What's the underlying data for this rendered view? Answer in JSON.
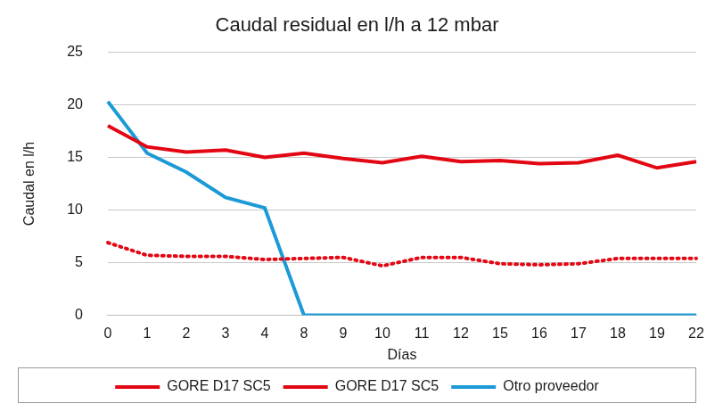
{
  "chart_data": {
    "type": "line",
    "title": "Caudal residual en l/h a 12 mbar",
    "x_label": "Días",
    "y_label": "Caudal en l/h",
    "categories": [
      "0",
      "1",
      "2",
      "3",
      "4",
      "8",
      "9",
      "10",
      "11",
      "12",
      "15",
      "16",
      "17",
      "18",
      "19",
      "22"
    ],
    "series": [
      {
        "name": "GORE D17 SC5",
        "color": "#e30613",
        "line_style": "dotted",
        "values": [
          6.9,
          5.7,
          5.6,
          5.6,
          5.3,
          5.4,
          5.5,
          4.7,
          5.5,
          5.5,
          4.9,
          4.8,
          4.9,
          5.4,
          5.4,
          5.4
        ]
      },
      {
        "name": "GORE D17 SC5",
        "color": "#e30613",
        "line_style": "solid",
        "values": [
          18,
          16,
          15.5,
          15.7,
          15,
          15.4,
          14.9,
          14.5,
          15.1,
          14.6,
          14.7,
          14.4,
          14.5,
          15.2,
          14,
          14.6
        ]
      },
      {
        "name": "Otro proveedor",
        "color": "#1b9ad6",
        "line_style": "solid",
        "values": [
          20.3,
          15.4,
          13.6,
          11.2,
          10.2,
          0,
          0,
          0,
          0,
          0,
          0,
          0,
          0,
          0,
          0,
          0
        ]
      }
    ],
    "ylim": [
      0,
      25
    ],
    "yticks": [
      0,
      5,
      10,
      15,
      20,
      25
    ],
    "grid": true,
    "legend": "bottom"
  }
}
